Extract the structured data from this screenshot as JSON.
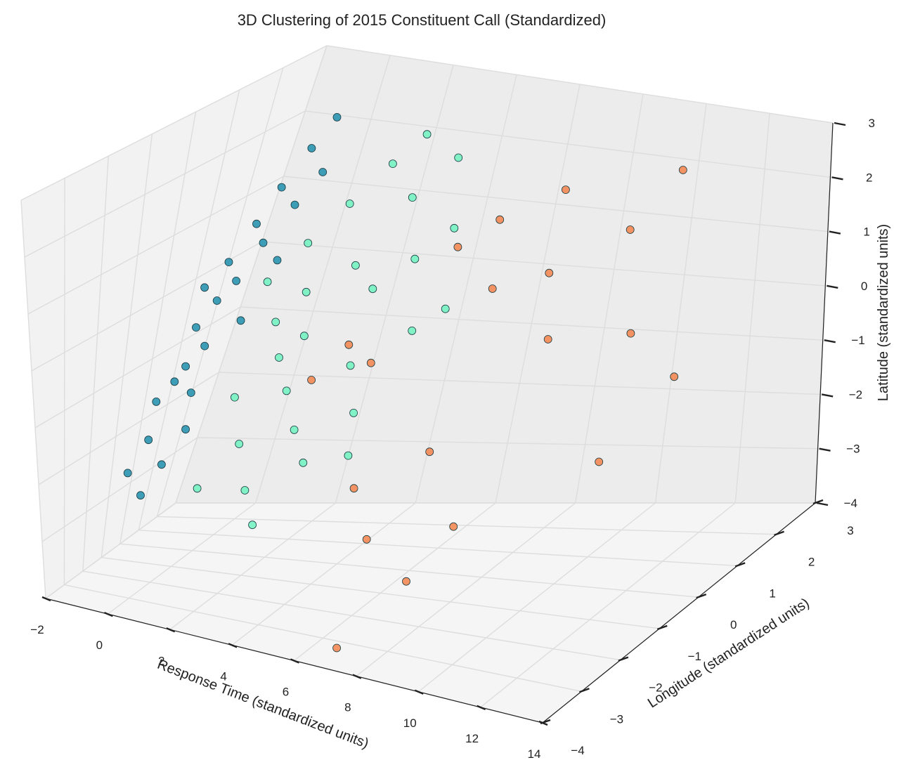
{
  "chart_data": {
    "type": "scatter",
    "title": "3D Clustering of 2015 Constituent Call (Standardized)",
    "xlabel": "Response Time (standardized units)",
    "ylabel": "Longitude (standardized units)",
    "zlabel": "Latitude (standardized units)",
    "x_ticks": [
      "−2",
      "0",
      "2",
      "4",
      "6",
      "8",
      "10",
      "12",
      "14"
    ],
    "y_ticks": [
      "−4",
      "−3",
      "−2",
      "−1",
      "0",
      "1",
      "2",
      "3"
    ],
    "z_ticks": [
      "−4",
      "−3",
      "−2",
      "−1",
      "0",
      "1",
      "2",
      "3"
    ],
    "xlim": [
      -2,
      14
    ],
    "ylim": [
      -4,
      3
    ],
    "zlim": [
      -4,
      3
    ],
    "grid": true,
    "series": [
      {
        "color": "#1f8fae",
        "points": [
          [
            -1.2,
            0.4,
            0.1
          ],
          [
            -1.0,
            0.8,
            0.4
          ],
          [
            -0.8,
            1.2,
            0.9
          ],
          [
            -0.6,
            1.5,
            1.4
          ],
          [
            -0.4,
            1.9,
            1.9
          ],
          [
            -0.2,
            2.2,
            2.3
          ],
          [
            -0.9,
            0.0,
            -0.4
          ],
          [
            -0.7,
            -0.4,
            -0.9
          ],
          [
            -1.1,
            -0.8,
            -1.4
          ],
          [
            -0.9,
            -1.2,
            -1.9
          ],
          [
            -1.2,
            -1.5,
            -2.4
          ],
          [
            -0.7,
            -1.6,
            -2.7
          ],
          [
            -0.5,
            0.6,
            0.2
          ],
          [
            -0.3,
            1.0,
            0.7
          ],
          [
            0.0,
            1.4,
            1.2
          ],
          [
            0.2,
            1.8,
            1.6
          ],
          [
            -0.4,
            -0.2,
            -0.6
          ],
          [
            -0.2,
            -0.7,
            -1.2
          ],
          [
            0.0,
            -1.0,
            -1.7
          ],
          [
            -0.3,
            -1.4,
            -2.2
          ],
          [
            -0.6,
            0.2,
            0.0
          ],
          [
            -0.8,
            -0.6,
            -1.1
          ],
          [
            0.1,
            0.3,
            -0.3
          ],
          [
            0.3,
            0.9,
            0.5
          ]
        ]
      },
      {
        "color": "#6ff2c0",
        "points": [
          [
            0.5,
            0.5,
            0.3
          ],
          [
            1.0,
            1.0,
            0.8
          ],
          [
            1.5,
            1.5,
            1.3
          ],
          [
            2.0,
            2.0,
            1.8
          ],
          [
            2.5,
            2.3,
            2.2
          ],
          [
            1.2,
            0.2,
            -0.2
          ],
          [
            1.8,
            -0.2,
            -0.6
          ],
          [
            2.4,
            -0.5,
            -1.0
          ],
          [
            3.0,
            -0.8,
            -1.5
          ],
          [
            3.6,
            -1.1,
            -1.9
          ],
          [
            1.0,
            -0.6,
            -1.2
          ],
          [
            1.6,
            -1.0,
            -1.8
          ],
          [
            2.2,
            -1.4,
            -2.4
          ],
          [
            2.8,
            -1.8,
            -2.8
          ],
          [
            3.5,
            0.6,
            0.4
          ],
          [
            4.2,
            1.0,
            0.8
          ],
          [
            4.8,
            1.4,
            1.2
          ],
          [
            3.2,
            1.6,
            1.5
          ],
          [
            2.6,
            0.9,
            0.6
          ],
          [
            4.0,
            -0.3,
            -0.5
          ],
          [
            4.6,
            -0.7,
            -1.1
          ],
          [
            5.2,
            0.2,
            0.0
          ],
          [
            5.8,
            0.5,
            0.3
          ],
          [
            0.8,
            -1.4,
            -2.5
          ],
          [
            1.4,
            0.8,
            0.1
          ],
          [
            2.0,
            0.3,
            -0.4
          ],
          [
            3.8,
            2.1,
            2.0
          ],
          [
            5.0,
            -1.2,
            -1.6
          ]
        ]
      },
      {
        "color": "#f5834a",
        "points": [
          [
            3.0,
            -0.4,
            -0.8
          ],
          [
            3.6,
            0.0,
            -0.3
          ],
          [
            4.4,
            -0.1,
            -0.5
          ],
          [
            5.2,
            1.2,
            1.0
          ],
          [
            6.0,
            1.5,
            1.4
          ],
          [
            6.8,
            0.8,
            0.6
          ],
          [
            7.5,
            1.8,
            1.9
          ],
          [
            8.2,
            1.0,
            0.9
          ],
          [
            9.0,
            0.4,
            0.1
          ],
          [
            9.8,
            1.6,
            1.5
          ],
          [
            10.5,
            2.2,
            2.3
          ],
          [
            11.2,
            0.6,
            0.3
          ],
          [
            5.5,
            -1.5,
            -2.0
          ],
          [
            6.4,
            -2.0,
            -2.6
          ],
          [
            7.2,
            -1.0,
            -1.4
          ],
          [
            8.0,
            -2.4,
            -3.0
          ],
          [
            8.8,
            -1.8,
            -2.2
          ],
          [
            12.0,
            -0.8,
            -1.2
          ],
          [
            13.0,
            0.2,
            -0.1
          ],
          [
            7.0,
            -3.6,
            -3.8
          ]
        ]
      }
    ]
  }
}
